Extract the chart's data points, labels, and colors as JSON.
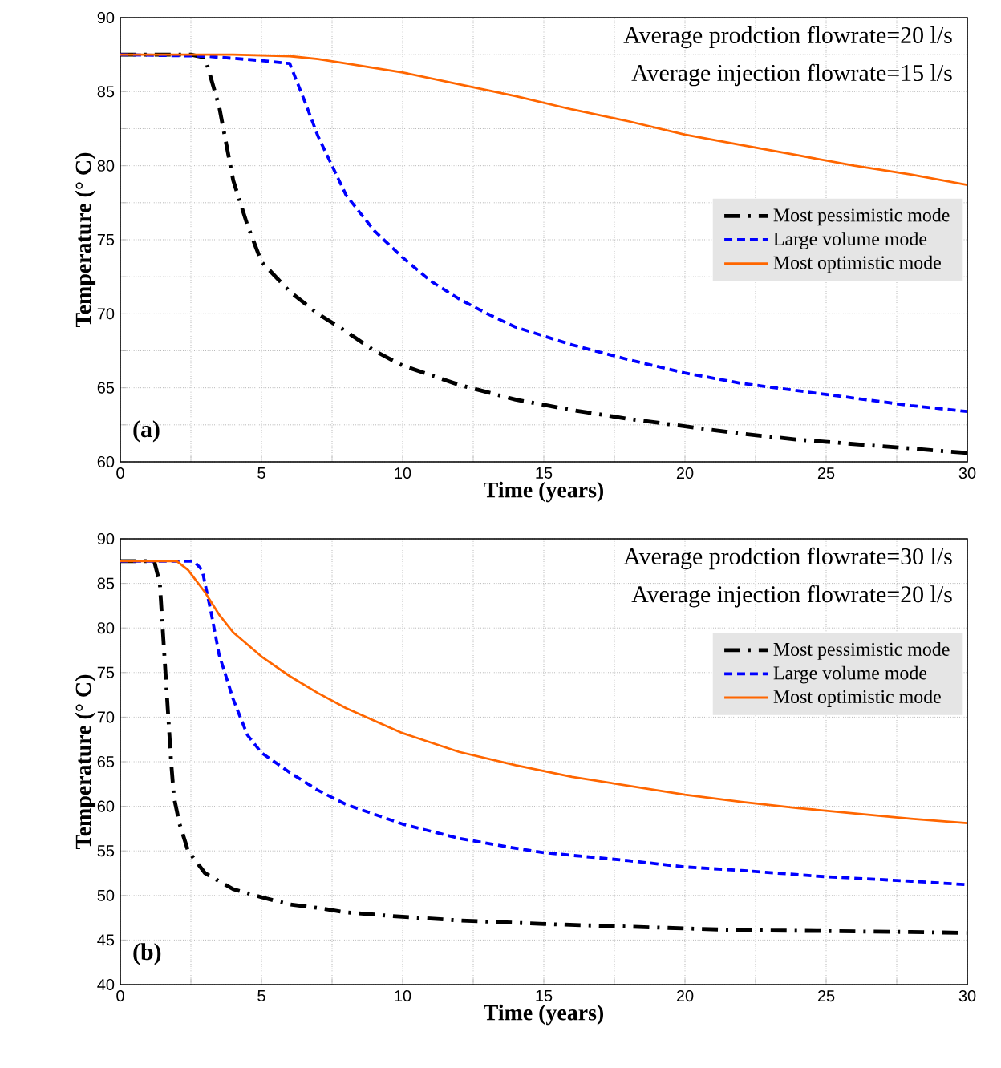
{
  "chart_data": [
    {
      "type": "line",
      "xlabel": "Time (years)",
      "ylabel": "Temperature (° C)",
      "annotations": [
        "Average prodction flowrate=20 l/s",
        "Average injection flowrate=15 l/s",
        "(a)"
      ],
      "xlim": [
        0,
        30
      ],
      "ylim": [
        60,
        90
      ],
      "xticks": [
        0,
        {
          "value": 2.5,
          "label": null
        },
        5,
        {
          "value": 7.5,
          "label": null
        },
        10,
        {
          "value": 12.5,
          "label": null
        },
        15,
        {
          "value": 17.5,
          "label": null
        },
        20,
        {
          "value": 22.5,
          "label": null
        },
        25,
        {
          "value": 27.5,
          "label": null
        },
        30
      ],
      "yticks": [
        60,
        {
          "value": 62.5,
          "label": null
        },
        65,
        {
          "value": 67.5,
          "label": null
        },
        70,
        {
          "value": 72.5,
          "label": null
        },
        75,
        {
          "value": 77.5,
          "label": null
        },
        80,
        {
          "value": 82.5,
          "label": null
        },
        85,
        {
          "value": 87.5,
          "label": null
        },
        90
      ],
      "grid": true,
      "legend": "right",
      "marker": "none",
      "series": [
        {
          "name": "Most pessimistic mode",
          "color": "#000000",
          "line_style": "dashdot",
          "x": [
            0,
            2.5,
            3,
            3.5,
            4,
            4.5,
            5,
            6,
            7,
            8,
            9,
            10,
            12,
            14,
            16,
            18,
            20,
            22,
            24,
            26,
            28,
            30
          ],
          "values": [
            87.5,
            87.5,
            87.3,
            84,
            79,
            76,
            73.5,
            71.5,
            70,
            68.8,
            67.5,
            66.5,
            65.2,
            64.2,
            63.5,
            62.9,
            62.4,
            61.9,
            61.5,
            61.2,
            60.9,
            60.6
          ]
        },
        {
          "name": "Large volume mode",
          "color": "#0000ff",
          "line_style": "dashed",
          "x": [
            0,
            3,
            5,
            6,
            6.5,
            7,
            7.5,
            8,
            9,
            10,
            11,
            12,
            13,
            14,
            15,
            16,
            18,
            20,
            22,
            24,
            26,
            28,
            30
          ],
          "values": [
            87.5,
            87.4,
            87.1,
            86.9,
            84.5,
            82,
            80,
            78,
            75.6,
            73.8,
            72.2,
            71,
            70,
            69.1,
            68.5,
            67.9,
            66.9,
            66,
            65.3,
            64.8,
            64.3,
            63.8,
            63.4
          ]
        },
        {
          "name": "Most optimistic mode",
          "color": "#ff6600",
          "line_style": "solid",
          "x": [
            0,
            4,
            6,
            7,
            8,
            10,
            12,
            14,
            16,
            18,
            20,
            22,
            24,
            26,
            28,
            30
          ],
          "values": [
            87.5,
            87.5,
            87.4,
            87.2,
            86.9,
            86.3,
            85.5,
            84.7,
            83.8,
            83,
            82.1,
            81.4,
            80.7,
            80,
            79.4,
            78.7
          ]
        }
      ]
    },
    {
      "type": "line",
      "xlabel": "Time (years)",
      "ylabel": "Temperature (° C)",
      "annotations": [
        "Average prodction flowrate=30 l/s",
        "Average injection flowrate=20 l/s",
        "(b)"
      ],
      "xlim": [
        0,
        30
      ],
      "ylim": [
        40,
        90
      ],
      "xticks": [
        0,
        {
          "value": 2.5,
          "label": null
        },
        5,
        {
          "value": 7.5,
          "label": null
        },
        10,
        {
          "value": 12.5,
          "label": null
        },
        15,
        {
          "value": 17.5,
          "label": null
        },
        20,
        {
          "value": 22.5,
          "label": null
        },
        25,
        {
          "value": 27.5,
          "label": null
        },
        30
      ],
      "yticks": [
        40,
        45,
        50,
        55,
        60,
        65,
        70,
        75,
        80,
        85,
        90
      ],
      "grid": true,
      "legend": "top right",
      "marker": "none",
      "series": [
        {
          "name": "Most pessimistic mode",
          "color": "#000000",
          "line_style": "dashdot",
          "x": [
            0,
            1.2,
            1.4,
            1.5,
            1.6,
            1.7,
            1.8,
            1.9,
            2.1,
            2.4,
            3,
            4,
            5,
            6,
            7,
            8,
            10,
            12,
            15,
            18,
            20,
            22,
            25,
            28,
            30
          ],
          "values": [
            87.5,
            87.5,
            85,
            80,
            75,
            70,
            65,
            61,
            58,
            55,
            52.5,
            50.7,
            49.8,
            49,
            48.6,
            48.1,
            47.6,
            47.2,
            46.8,
            46.5,
            46.3,
            46.1,
            46,
            45.9,
            45.8
          ]
        },
        {
          "name": "Large volume mode",
          "color": "#0000ff",
          "line_style": "dashed",
          "x": [
            0,
            2.6,
            2.9,
            3.2,
            3.5,
            4,
            4.5,
            5,
            6,
            7,
            8,
            10,
            12,
            14,
            15,
            18,
            20,
            22,
            25,
            28,
            30
          ],
          "values": [
            87.5,
            87.5,
            86.5,
            82,
            77,
            72,
            68,
            66,
            63.8,
            61.8,
            60.2,
            58,
            56.4,
            55.3,
            54.8,
            53.9,
            53.2,
            52.8,
            52.1,
            51.6,
            51.2
          ]
        },
        {
          "name": "Most optimistic mode",
          "color": "#ff6600",
          "line_style": "solid",
          "x": [
            0,
            2,
            2.4,
            3,
            3.5,
            4,
            5,
            6,
            7,
            8,
            10,
            12,
            14,
            16,
            18,
            20,
            22,
            24,
            26,
            28,
            30
          ],
          "values": [
            87.5,
            87.5,
            86.5,
            84,
            81.5,
            79.5,
            76.8,
            74.6,
            72.7,
            71,
            68.2,
            66.1,
            64.6,
            63.3,
            62.3,
            61.3,
            60.5,
            59.8,
            59.2,
            58.6,
            58.1
          ]
        }
      ]
    }
  ]
}
